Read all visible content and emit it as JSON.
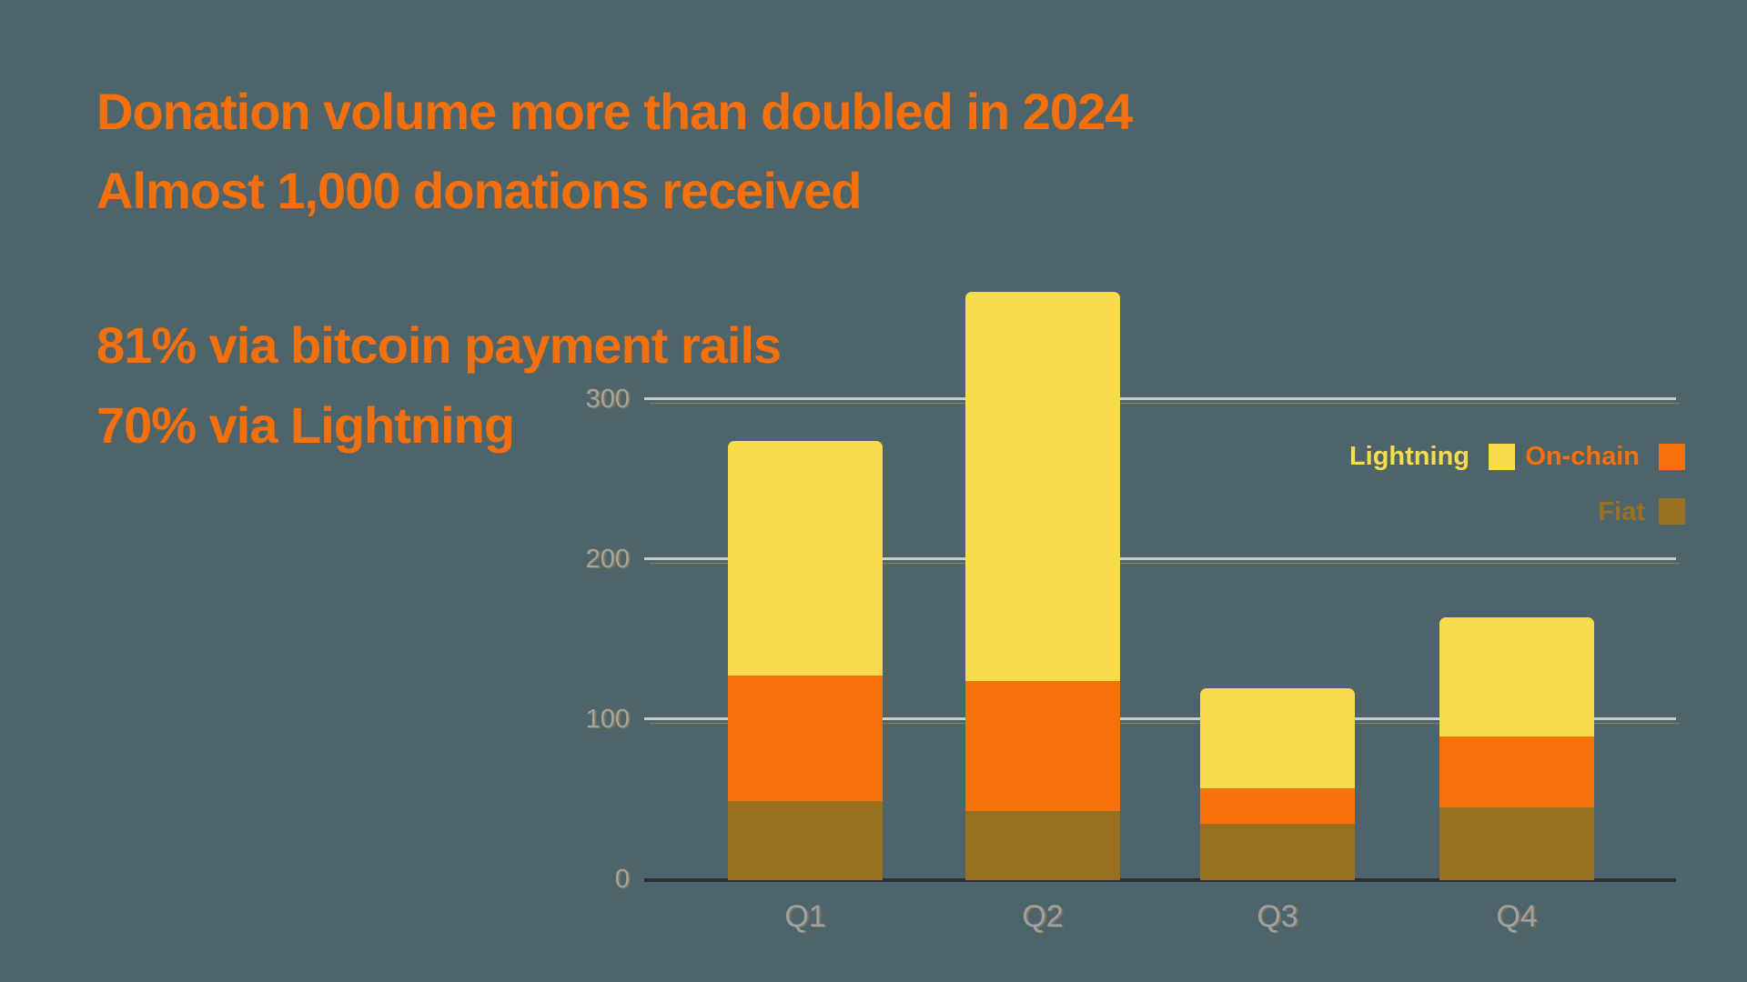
{
  "headline": {
    "line1": "Donation volume more than doubled in 2024",
    "line2": "Almost 1,000 donations received",
    "line3": "81% via bitcoin payment rails",
    "line4": "70% via Lightning"
  },
  "colors": {
    "background": "#4E646B",
    "headline_text": "#F3700C",
    "gridline": "#C9CBCD",
    "axis_line": "#2B3034",
    "tick_label": "#A6A59D",
    "ghost_tan": "#CB9242"
  },
  "chart_data": {
    "type": "bar",
    "stacked": true,
    "title": "",
    "xlabel": "",
    "ylabel": "",
    "categories": [
      "Q1",
      "Q2",
      "Q3",
      "Q4"
    ],
    "series": [
      {
        "name": "Fiat",
        "color": "#97711F",
        "values": [
          49,
          43,
          35,
          45
        ]
      },
      {
        "name": "On-chain",
        "color": "#F6710B",
        "values": [
          78,
          81,
          22,
          44
        ]
      },
      {
        "name": "Lightning",
        "color": "#F8DC4C",
        "values": [
          146,
          242,
          62,
          74
        ]
      }
    ],
    "totals": [
      273,
      366,
      119,
      163
    ],
    "yticks": [
      0,
      100,
      200,
      300
    ],
    "ylim": [
      0,
      370
    ],
    "grid": true,
    "legend_position": "right"
  }
}
